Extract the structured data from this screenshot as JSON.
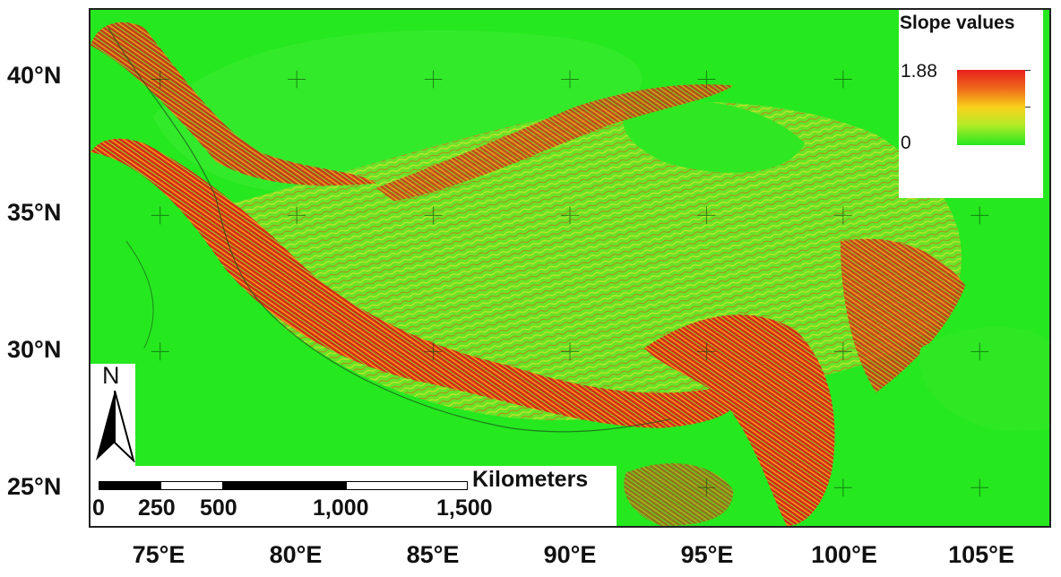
{
  "map": {
    "legend": {
      "title": "Slope values",
      "max_label": "1.88",
      "min_label": "0",
      "ramp_colors": [
        "#e81f1f",
        "#f7d21a",
        "#25e81f"
      ]
    },
    "latitude_labels": [
      "40°N",
      "35°N",
      "30°N",
      "25°N"
    ],
    "longitude_labels": [
      "75°E",
      "80°E",
      "85°E",
      "90°E",
      "95°E",
      "100°E",
      "105°E"
    ],
    "north_arrow": {
      "letter": "N",
      "icon": "north-arrow-icon"
    },
    "scale_bar": {
      "units": "Kilometers",
      "ticks": [
        "0",
        "250",
        "500",
        "1,000",
        "1,500"
      ]
    },
    "colors": {
      "low": "#25e81f",
      "mid": "#f7d21a",
      "high": "#d62a17"
    }
  }
}
